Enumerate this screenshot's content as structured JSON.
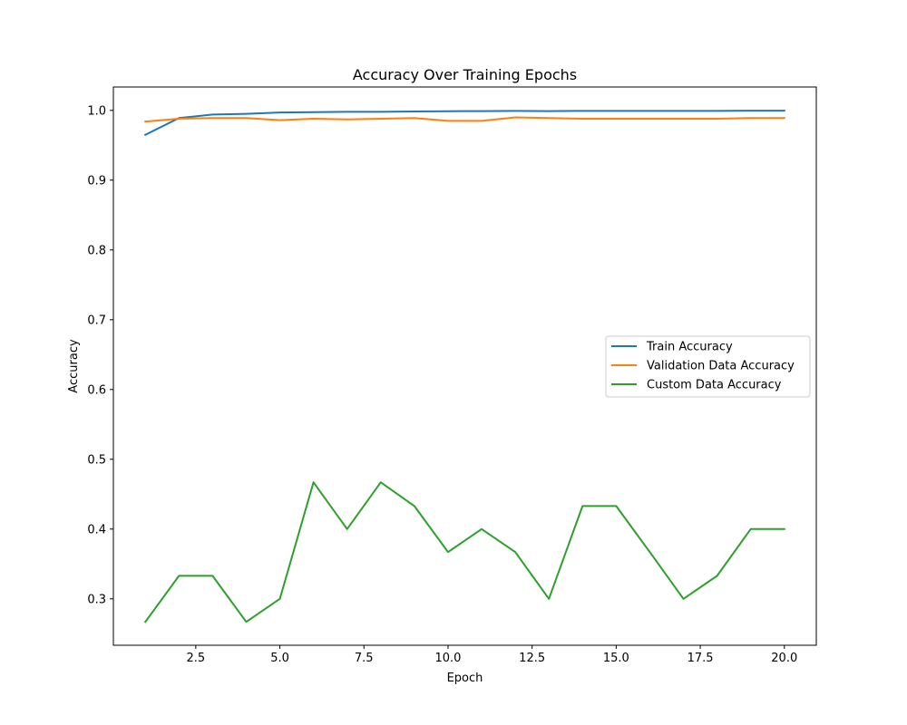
{
  "chart_data": {
    "type": "line",
    "title": "Accuracy Over Training Epochs",
    "xlabel": "Epoch",
    "ylabel": "Accuracy",
    "xlim": [
      0.05,
      20.95
    ],
    "ylim": [
      0.2335,
      1.0335
    ],
    "x_ticks": [
      2.5,
      5.0,
      7.5,
      10.0,
      12.5,
      15.0,
      17.5,
      20.0
    ],
    "x_tick_labels": [
      "2.5",
      "5.0",
      "7.5",
      "10.0",
      "12.5",
      "15.0",
      "17.5",
      "20.0"
    ],
    "y_ticks": [
      0.3,
      0.4,
      0.5,
      0.6,
      0.7,
      0.8,
      0.9,
      1.0
    ],
    "y_tick_labels": [
      "0.3",
      "0.4",
      "0.5",
      "0.6",
      "0.7",
      "0.8",
      "0.9",
      "1.0"
    ],
    "grid": false,
    "legend_position": "center-right",
    "x": [
      1,
      2,
      3,
      4,
      5,
      6,
      7,
      8,
      9,
      10,
      11,
      12,
      13,
      14,
      15,
      16,
      17,
      18,
      19,
      20
    ],
    "series": [
      {
        "name": "Train Accuracy",
        "color": "#1f77b4",
        "values": [
          0.965,
          0.989,
          0.994,
          0.995,
          0.997,
          0.9975,
          0.998,
          0.998,
          0.9985,
          0.9988,
          0.999,
          0.9993,
          0.999,
          0.9993,
          0.9992,
          0.9993,
          0.9993,
          0.9993,
          0.9995,
          0.9995
        ]
      },
      {
        "name": "Validation Data Accuracy",
        "color": "#ff7f0e",
        "values": [
          0.984,
          0.988,
          0.989,
          0.989,
          0.986,
          0.988,
          0.987,
          0.988,
          0.989,
          0.985,
          0.985,
          0.99,
          0.989,
          0.988,
          0.988,
          0.988,
          0.988,
          0.988,
          0.989,
          0.989
        ]
      },
      {
        "name": "Custom Data Accuracy",
        "color": "#2ca02c",
        "values": [
          0.267,
          0.333,
          0.333,
          0.267,
          0.3,
          0.467,
          0.4,
          0.467,
          0.433,
          0.367,
          0.4,
          0.367,
          0.3,
          0.433,
          0.433,
          0.367,
          0.3,
          0.333,
          0.4,
          0.4
        ]
      }
    ]
  }
}
